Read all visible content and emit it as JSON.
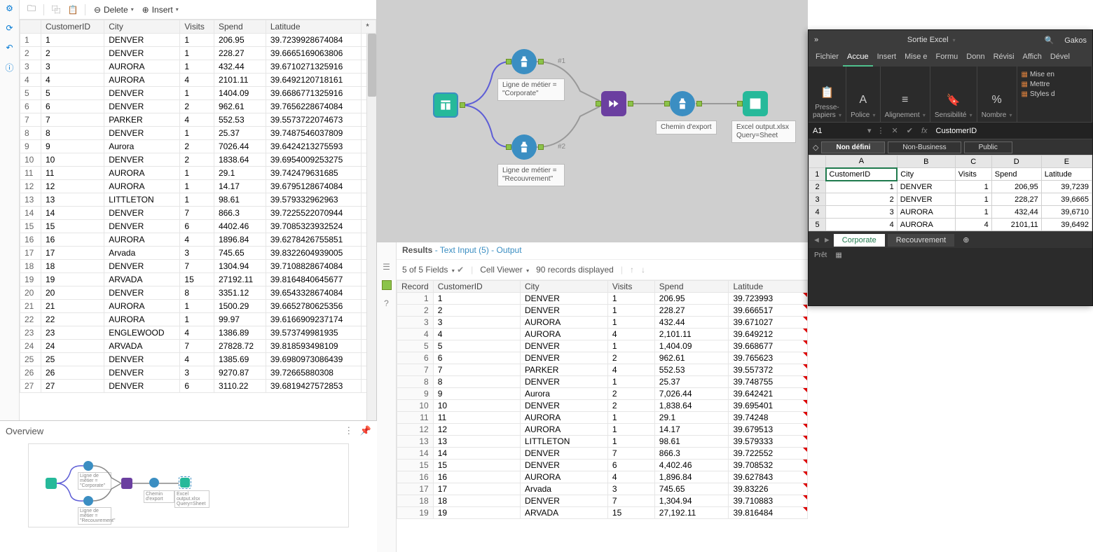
{
  "toolbar": {
    "delete": "Delete",
    "insert": "Insert"
  },
  "left_grid": {
    "columns": [
      "CustomerID",
      "City",
      "Visits",
      "Spend",
      "Latitude",
      "*"
    ],
    "rows": [
      [
        "1",
        "1",
        "DENVER",
        "1",
        "206.95",
        "39.7239928674084"
      ],
      [
        "2",
        "2",
        "DENVER",
        "1",
        "228.27",
        "39.6665169063806"
      ],
      [
        "3",
        "3",
        "AURORA",
        "1",
        "432.44",
        "39.6710271325916"
      ],
      [
        "4",
        "4",
        "AURORA",
        "4",
        "2101.11",
        "39.6492120718161"
      ],
      [
        "5",
        "5",
        "DENVER",
        "1",
        "1404.09",
        "39.6686771325916"
      ],
      [
        "6",
        "6",
        "DENVER",
        "2",
        "962.61",
        "39.7656228674084"
      ],
      [
        "7",
        "7",
        "PARKER",
        "4",
        "552.53",
        "39.5573722074673"
      ],
      [
        "8",
        "8",
        "DENVER",
        "1",
        "25.37",
        "39.7487546037809"
      ],
      [
        "9",
        "9",
        "Aurora",
        "2",
        "7026.44",
        "39.6424213275593"
      ],
      [
        "10",
        "10",
        "DENVER",
        "2",
        "1838.64",
        "39.6954009253275"
      ],
      [
        "11",
        "11",
        "AURORA",
        "1",
        "29.1",
        "39.742479631685"
      ],
      [
        "12",
        "12",
        "AURORA",
        "1",
        "14.17",
        "39.6795128674084"
      ],
      [
        "13",
        "13",
        "LITTLETON",
        "1",
        "98.61",
        "39.579332962963"
      ],
      [
        "14",
        "14",
        "DENVER",
        "7",
        "866.3",
        "39.7225522070944"
      ],
      [
        "15",
        "15",
        "DENVER",
        "6",
        "4402.46",
        "39.7085323932524"
      ],
      [
        "16",
        "16",
        "AURORA",
        "4",
        "1896.84",
        "39.6278426755851"
      ],
      [
        "17",
        "17",
        "Arvada",
        "3",
        "745.65",
        "39.8322604939005"
      ],
      [
        "18",
        "18",
        "DENVER",
        "7",
        "1304.94",
        "39.7108828674084"
      ],
      [
        "19",
        "19",
        "ARVADA",
        "15",
        "27192.11",
        "39.8164840645677"
      ],
      [
        "20",
        "20",
        "DENVER",
        "8",
        "3351.12",
        "39.6543328674084"
      ],
      [
        "21",
        "21",
        "AURORA",
        "1",
        "1500.29",
        "39.6652780625356"
      ],
      [
        "22",
        "22",
        "AURORA",
        "1",
        "99.97",
        "39.6166909237174"
      ],
      [
        "23",
        "23",
        "ENGLEWOOD",
        "4",
        "1386.89",
        "39.573749981935"
      ],
      [
        "24",
        "24",
        "ARVADA",
        "7",
        "27828.72",
        "39.818593498109"
      ],
      [
        "25",
        "25",
        "DENVER",
        "4",
        "1385.69",
        "39.6980973086439"
      ],
      [
        "26",
        "26",
        "DENVER",
        "3",
        "9270.87",
        "39.72665880308"
      ],
      [
        "27",
        "27",
        "DENVER",
        "6",
        "3110.22",
        "39.6819427572853"
      ]
    ]
  },
  "overview": {
    "title": "Overview"
  },
  "canvas": {
    "label1_line1": "Ligne de métier =",
    "label1_line2": "\"Corporate\"",
    "label2_line1": "Ligne de métier =",
    "label2_line2": "\"Recouvrement\"",
    "tag1": "#1",
    "tag2": "#2",
    "export_label": "Chemin d'export",
    "output_line1": "Excel output.xlsx",
    "output_line2": "Query=Sheet"
  },
  "results": {
    "title_strong": "Results",
    "title_rest": " - Text Input (5) - Output",
    "fields_info": "5 of 5 Fields",
    "cell_viewer": "Cell Viewer",
    "records": "90 records displayed",
    "columns": [
      "Record",
      "CustomerID",
      "City",
      "Visits",
      "Spend",
      "Latitude"
    ],
    "rows": [
      [
        "1",
        "1",
        "DENVER",
        "1",
        "206.95",
        "39.723993"
      ],
      [
        "2",
        "2",
        "DENVER",
        "1",
        "228.27",
        "39.666517"
      ],
      [
        "3",
        "3",
        "AURORA",
        "1",
        "432.44",
        "39.671027"
      ],
      [
        "4",
        "4",
        "AURORA",
        "4",
        "2,101.11",
        "39.649212"
      ],
      [
        "5",
        "5",
        "DENVER",
        "1",
        "1,404.09",
        "39.668677"
      ],
      [
        "6",
        "6",
        "DENVER",
        "2",
        "962.61",
        "39.765623"
      ],
      [
        "7",
        "7",
        "PARKER",
        "4",
        "552.53",
        "39.557372"
      ],
      [
        "8",
        "8",
        "DENVER",
        "1",
        "25.37",
        "39.748755"
      ],
      [
        "9",
        "9",
        "Aurora",
        "2",
        "7,026.44",
        "39.642421"
      ],
      [
        "10",
        "10",
        "DENVER",
        "2",
        "1,838.64",
        "39.695401"
      ],
      [
        "11",
        "11",
        "AURORA",
        "1",
        "29.1",
        "39.74248"
      ],
      [
        "12",
        "12",
        "AURORA",
        "1",
        "14.17",
        "39.679513"
      ],
      [
        "13",
        "13",
        "LITTLETON",
        "1",
        "98.61",
        "39.579333"
      ],
      [
        "14",
        "14",
        "DENVER",
        "7",
        "866.3",
        "39.722552"
      ],
      [
        "15",
        "15",
        "DENVER",
        "6",
        "4,402.46",
        "39.708532"
      ],
      [
        "16",
        "16",
        "AURORA",
        "4",
        "1,896.84",
        "39.627843"
      ],
      [
        "17",
        "17",
        "Arvada",
        "3",
        "745.65",
        "39.83226"
      ],
      [
        "18",
        "18",
        "DENVER",
        "7",
        "1,304.94",
        "39.710883"
      ],
      [
        "19",
        "19",
        "ARVADA",
        "15",
        "27,192.11",
        "39.816484"
      ]
    ]
  },
  "excel": {
    "title": "Sortie Excel",
    "user": "Gakos",
    "tabs": [
      "Fichier",
      "Accue",
      "Insert",
      "Mise e",
      "Formu",
      "Donn",
      "Révisi",
      "Affich",
      "Dével"
    ],
    "active_tab_index": 1,
    "ribbon_groups": [
      {
        "label": "Presse-\npapiers",
        "icon": "📋"
      },
      {
        "label": "Police",
        "icon": "A"
      },
      {
        "label": "Alignement",
        "icon": "≡"
      },
      {
        "label": "Sensibilité",
        "icon": "🔖"
      },
      {
        "label": "Nombre",
        "icon": "%"
      }
    ],
    "ribbon_sub": "Sensibilité",
    "ribbon_side": [
      "Mise en",
      "Mettre",
      "Styles d"
    ],
    "namebox": "A1",
    "formula": "CustomerID",
    "tags": [
      "Non défini",
      "Non-Business",
      "Public"
    ],
    "tag_icon": "◇",
    "sheet_cols": [
      "A",
      "B",
      "C",
      "D",
      "E"
    ],
    "sheet_headers": [
      "CustomerID",
      "City",
      "Visits",
      "Spend",
      "Latitude"
    ],
    "sheet_rows": [
      [
        "1",
        "DENVER",
        "1",
        "206,95",
        "39,7239"
      ],
      [
        "2",
        "DENVER",
        "1",
        "228,27",
        "39,6665"
      ],
      [
        "3",
        "AURORA",
        "1",
        "432,44",
        "39,6710"
      ],
      [
        "4",
        "AURORA",
        "4",
        "2101,11",
        "39,6492"
      ]
    ],
    "sheet_row_start": 2,
    "sheet_tabs": [
      "Corporate",
      "Recouvrement"
    ],
    "active_sheet": 0,
    "status": "Prêt"
  }
}
